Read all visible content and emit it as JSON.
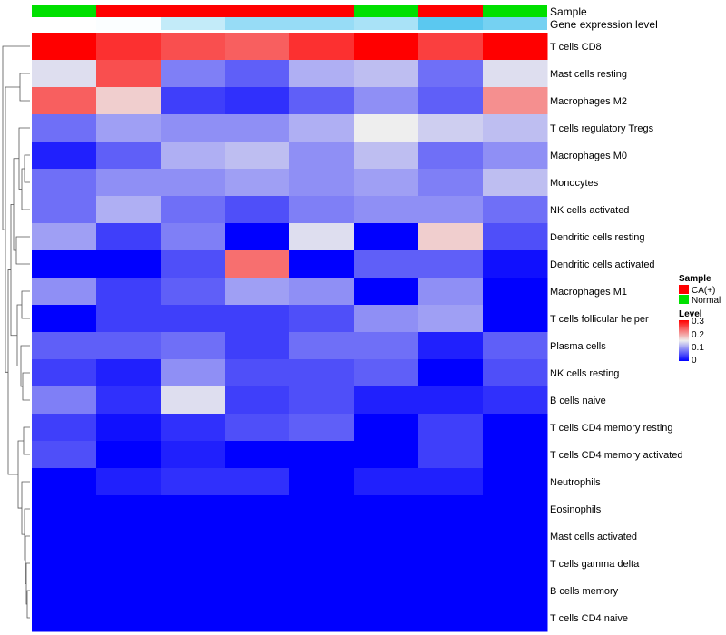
{
  "chart_data": {
    "type": "heatmap",
    "annotation_rows": {
      "sample_label": "Sample",
      "expression_label": "Gene expression level"
    },
    "columns": [
      {
        "sample": "Normal",
        "expression": 0.3
      },
      {
        "sample": "CA(+)",
        "expression": 0.295
      },
      {
        "sample": "CA(+)",
        "expression": 0.23
      },
      {
        "sample": "CA(+)",
        "expression": 0.18
      },
      {
        "sample": "CA(+)",
        "expression": 0.18
      },
      {
        "sample": "Normal",
        "expression": 0.2
      },
      {
        "sample": "CA(+)",
        "expression": 0.11
      },
      {
        "sample": "Normal",
        "expression": 0.14
      }
    ],
    "rows": [
      "T cells CD8",
      "Mast cells resting",
      "Macrophages M2",
      "T cells regulatory  Tregs",
      "Macrophages M0",
      "Monocytes",
      "NK cells activated",
      "Dendritic cells resting",
      "Dendritic cells activated",
      "Macrophages M1",
      "T cells follicular helper",
      "Plasma cells",
      "NK cells resting",
      "B cells naive",
      "T cells CD4 memory resting",
      "T cells CD4 memory activated",
      "Neutrophils",
      "Eosinophils",
      "Mast cells activated",
      "T cells gamma delta",
      "B cells memory",
      "T cells CD4 naive"
    ],
    "values": [
      [
        0.3,
        0.27,
        0.25,
        0.24,
        0.27,
        0.3,
        0.26,
        0.3
      ],
      [
        0.14,
        0.25,
        0.08,
        0.06,
        0.11,
        0.12,
        0.07,
        0.14
      ],
      [
        0.24,
        0.17,
        0.04,
        0.03,
        0.06,
        0.09,
        0.06,
        0.21
      ],
      [
        0.07,
        0.1,
        0.09,
        0.09,
        0.11,
        0.15,
        0.13,
        0.12
      ],
      [
        0.02,
        0.06,
        0.11,
        0.12,
        0.09,
        0.12,
        0.07,
        0.09
      ],
      [
        0.07,
        0.09,
        0.09,
        0.1,
        0.09,
        0.1,
        0.08,
        0.12
      ],
      [
        0.07,
        0.11,
        0.07,
        0.05,
        0.08,
        0.09,
        0.09,
        0.07
      ],
      [
        0.1,
        0.04,
        0.08,
        0.0,
        0.14,
        0.0,
        0.17,
        0.05
      ],
      [
        0.0,
        0.0,
        0.05,
        0.23,
        0.0,
        0.06,
        0.06,
        0.01
      ],
      [
        0.09,
        0.04,
        0.06,
        0.1,
        0.09,
        0.0,
        0.09,
        0.0
      ],
      [
        0.0,
        0.04,
        0.04,
        0.04,
        0.05,
        0.09,
        0.1,
        0.0
      ],
      [
        0.06,
        0.06,
        0.07,
        0.04,
        0.07,
        0.07,
        0.02,
        0.06
      ],
      [
        0.04,
        0.02,
        0.09,
        0.05,
        0.05,
        0.06,
        0.0,
        0.05
      ],
      [
        0.08,
        0.03,
        0.14,
        0.04,
        0.05,
        0.02,
        0.02,
        0.03
      ],
      [
        0.04,
        0.01,
        0.03,
        0.05,
        0.06,
        0.0,
        0.04,
        0.0
      ],
      [
        0.05,
        0.0,
        0.02,
        0.0,
        0.0,
        0.0,
        0.04,
        0.0
      ],
      [
        0.0,
        0.02,
        0.03,
        0.03,
        0.0,
        0.02,
        0.02,
        0.0
      ],
      [
        0.0,
        0.0,
        0.0,
        0.0,
        0.0,
        0.0,
        0.0,
        0.0
      ],
      [
        0.0,
        0.0,
        0.0,
        0.0,
        0.0,
        0.0,
        0.0,
        0.0
      ],
      [
        0.0,
        0.0,
        0.0,
        0.0,
        0.0,
        0.0,
        0.0,
        0.0
      ],
      [
        0.0,
        0.0,
        0.0,
        0.0,
        0.0,
        0.0,
        0.0,
        0.0
      ],
      [
        0.0,
        0.0,
        0.0,
        0.0,
        0.0,
        0.0,
        0.0,
        0.0
      ]
    ],
    "color_scale": {
      "stops": [
        {
          "value": 0.0,
          "color": "#0000ff"
        },
        {
          "value": 0.15,
          "color": "#eeeeee"
        },
        {
          "value": 0.3,
          "color": "#ff0000"
        }
      ],
      "range": [
        0,
        0.3
      ]
    },
    "sample_colors": {
      "CA(+)": "#ff0000",
      "Normal": "#00e000"
    },
    "expression_colors": {
      "low": "#5bc8f0",
      "high": "#ffffff"
    },
    "legend": {
      "placement": "right",
      "sample_title": "Sample",
      "sample_entries": [
        "CA(+)",
        "Normal"
      ],
      "level_title": "Level",
      "level_ticks": [
        "0.3",
        "0.2",
        "0.1",
        "0"
      ]
    },
    "row_dendrogram": true
  }
}
